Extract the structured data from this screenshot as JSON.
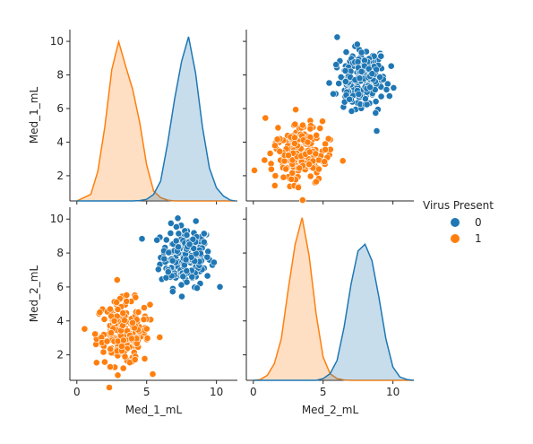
{
  "chart_data": {
    "type": "pairplot",
    "variables": [
      "Med_1_mL",
      "Med_2_mL"
    ],
    "hue_title": "Virus Present",
    "hue_levels": [
      "0",
      "1"
    ],
    "colors": {
      "0": "#1f77b4",
      "1": "#ff7f0e"
    },
    "xticks": [
      0,
      5,
      10
    ],
    "yticks": [
      2,
      4,
      6,
      8,
      10
    ],
    "xlim": [
      -0.5,
      11.5
    ],
    "ylim": [
      0.5,
      10.7
    ],
    "groups": {
      "0": {
        "mean": [
          7.8,
          7.8
        ],
        "sd": [
          0.9,
          0.9
        ],
        "n": 200
      },
      "1": {
        "mean": [
          3.3,
          3.3
        ],
        "sd": [
          0.95,
          0.95
        ],
        "n": 200
      }
    },
    "kde": {
      "Med_1_mL": {
        "x": [
          0.0,
          1.0,
          1.5,
          2.0,
          2.5,
          3.0,
          3.5,
          4.0,
          4.5,
          5.0,
          5.5,
          6.0,
          6.5,
          7.0,
          7.5,
          8.0,
          8.5,
          9.0,
          9.5,
          10.0,
          10.5,
          11.0,
          11.3
        ],
        "series": [
          {
            "name": "0",
            "values": [
              0,
              0,
              0,
              0,
              0,
              0,
              0,
              0,
              0.002,
              0.01,
              0.04,
              0.12,
              0.35,
              0.62,
              0.85,
              1.0,
              0.78,
              0.45,
              0.2,
              0.08,
              0.03,
              0.005,
              0
            ]
          },
          {
            "name": "1",
            "values": [
              0,
              0.04,
              0.18,
              0.45,
              0.8,
              0.97,
              0.82,
              0.68,
              0.48,
              0.22,
              0.06,
              0.02,
              0.005,
              0,
              0,
              0,
              0,
              0,
              0,
              0,
              0,
              0,
              0
            ]
          }
        ]
      },
      "Med_2_mL": {
        "x": [
          0.0,
          0.5,
          1.0,
          1.5,
          2.0,
          2.5,
          3.0,
          3.5,
          4.0,
          4.5,
          5.0,
          5.5,
          6.0,
          6.5,
          7.0,
          7.5,
          8.0,
          8.5,
          9.0,
          9.5,
          10.0,
          10.5,
          11.0,
          11.5
        ],
        "series": [
          {
            "name": "0",
            "values": [
              0,
              0,
              0,
              0,
              0,
              0,
              0,
              0,
              0,
              0,
              0.01,
              0.04,
              0.12,
              0.32,
              0.58,
              0.78,
              0.82,
              0.72,
              0.5,
              0.25,
              0.08,
              0.02,
              0.005,
              0
            ]
          },
          {
            "name": "1",
            "values": [
              0,
              0.005,
              0.03,
              0.1,
              0.25,
              0.55,
              0.82,
              0.98,
              0.75,
              0.4,
              0.14,
              0.04,
              0.01,
              0.002,
              0,
              0,
              0,
              0,
              0,
              0,
              0,
              0,
              0,
              0
            ]
          }
        ]
      }
    }
  }
}
